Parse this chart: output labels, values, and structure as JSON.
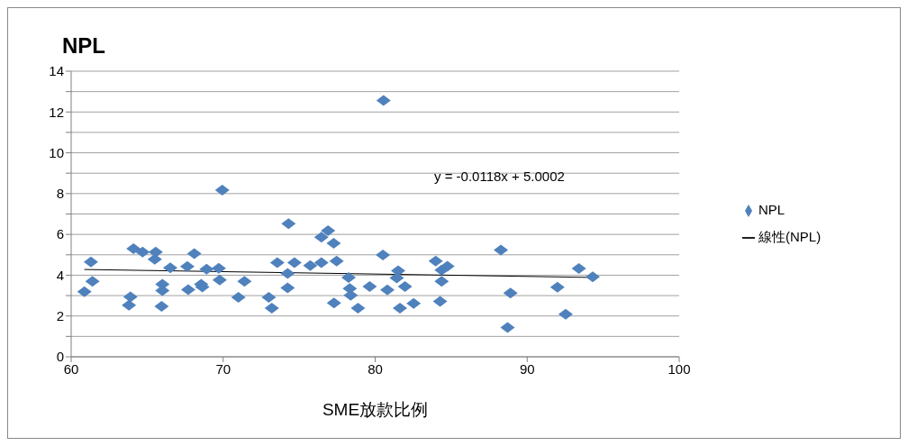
{
  "chart_data": {
    "type": "scatter",
    "title": "NPL",
    "xlabel": "SME放款比例",
    "xlim": [
      60,
      100
    ],
    "xticks": [
      60,
      70,
      80,
      90,
      100
    ],
    "ylim": [
      0,
      14
    ],
    "yticks": [
      0,
      {
        "value": 1,
        "label": null
      },
      2,
      {
        "value": 3,
        "label": null
      },
      4,
      {
        "value": 5,
        "label": null
      },
      6,
      {
        "value": 7,
        "label": null
      },
      8,
      {
        "value": 9,
        "label": null
      },
      10,
      {
        "value": 11,
        "label": null
      },
      12,
      {
        "value": 13,
        "label": null
      },
      14
    ],
    "grid": "y",
    "legend": "right",
    "marker": "diamond",
    "annotations": [
      "y = -0.0118x + 5.0002"
    ],
    "series": [
      {
        "name": "NPL",
        "color": "#4f81bd",
        "x": [
          60.87,
          61.3,
          61.4,
          63.8,
          63.9,
          64.1,
          64.7,
          65.5,
          65.56,
          65.95,
          66.0,
          66.0,
          66.52,
          67.64,
          67.7,
          68.1,
          68.55,
          68.63,
          68.91,
          69.71,
          69.77,
          69.94,
          71.0,
          71.4,
          73.0,
          73.2,
          73.56,
          74.3,
          74.69,
          74.24,
          74.24,
          75.73,
          76.46,
          76.46,
          76.9,
          77.27,
          77.46,
          77.29,
          78.25,
          78.33,
          78.39,
          78.87,
          79.64,
          80.51,
          80.55,
          80.8,
          81.51,
          81.42,
          81.63,
          81.96,
          82.53,
          83.98,
          84.37,
          84.75,
          84.37,
          84.27,
          88.27,
          88.9,
          88.71,
          91.99,
          92.53,
          93.4,
          94.31
        ],
        "values": [
          3.19,
          4.65,
          3.7,
          2.53,
          2.94,
          5.3,
          5.13,
          4.78,
          5.13,
          2.47,
          3.55,
          3.25,
          4.36,
          4.43,
          3.29,
          5.06,
          3.55,
          3.42,
          4.3,
          4.34,
          3.77,
          8.17,
          2.91,
          3.7,
          2.91,
          2.38,
          4.62,
          6.52,
          4.62,
          4.08,
          3.38,
          4.47,
          4.62,
          5.86,
          6.18,
          5.57,
          4.69,
          2.64,
          3.89,
          3.35,
          3.01,
          2.38,
          3.45,
          4.99,
          12.56,
          3.28,
          4.22,
          3.86,
          2.38,
          3.45,
          2.62,
          4.69,
          4.25,
          4.44,
          3.7,
          2.72,
          5.23,
          3.13,
          1.43,
          3.41,
          2.09,
          4.33,
          3.92
        ]
      },
      {
        "name": "線性(NPL)",
        "type": "line",
        "color": "#000000",
        "marker": "none",
        "x": [
          60.87,
          94.31
        ],
        "values": [
          4.28,
          3.89
        ]
      }
    ]
  }
}
